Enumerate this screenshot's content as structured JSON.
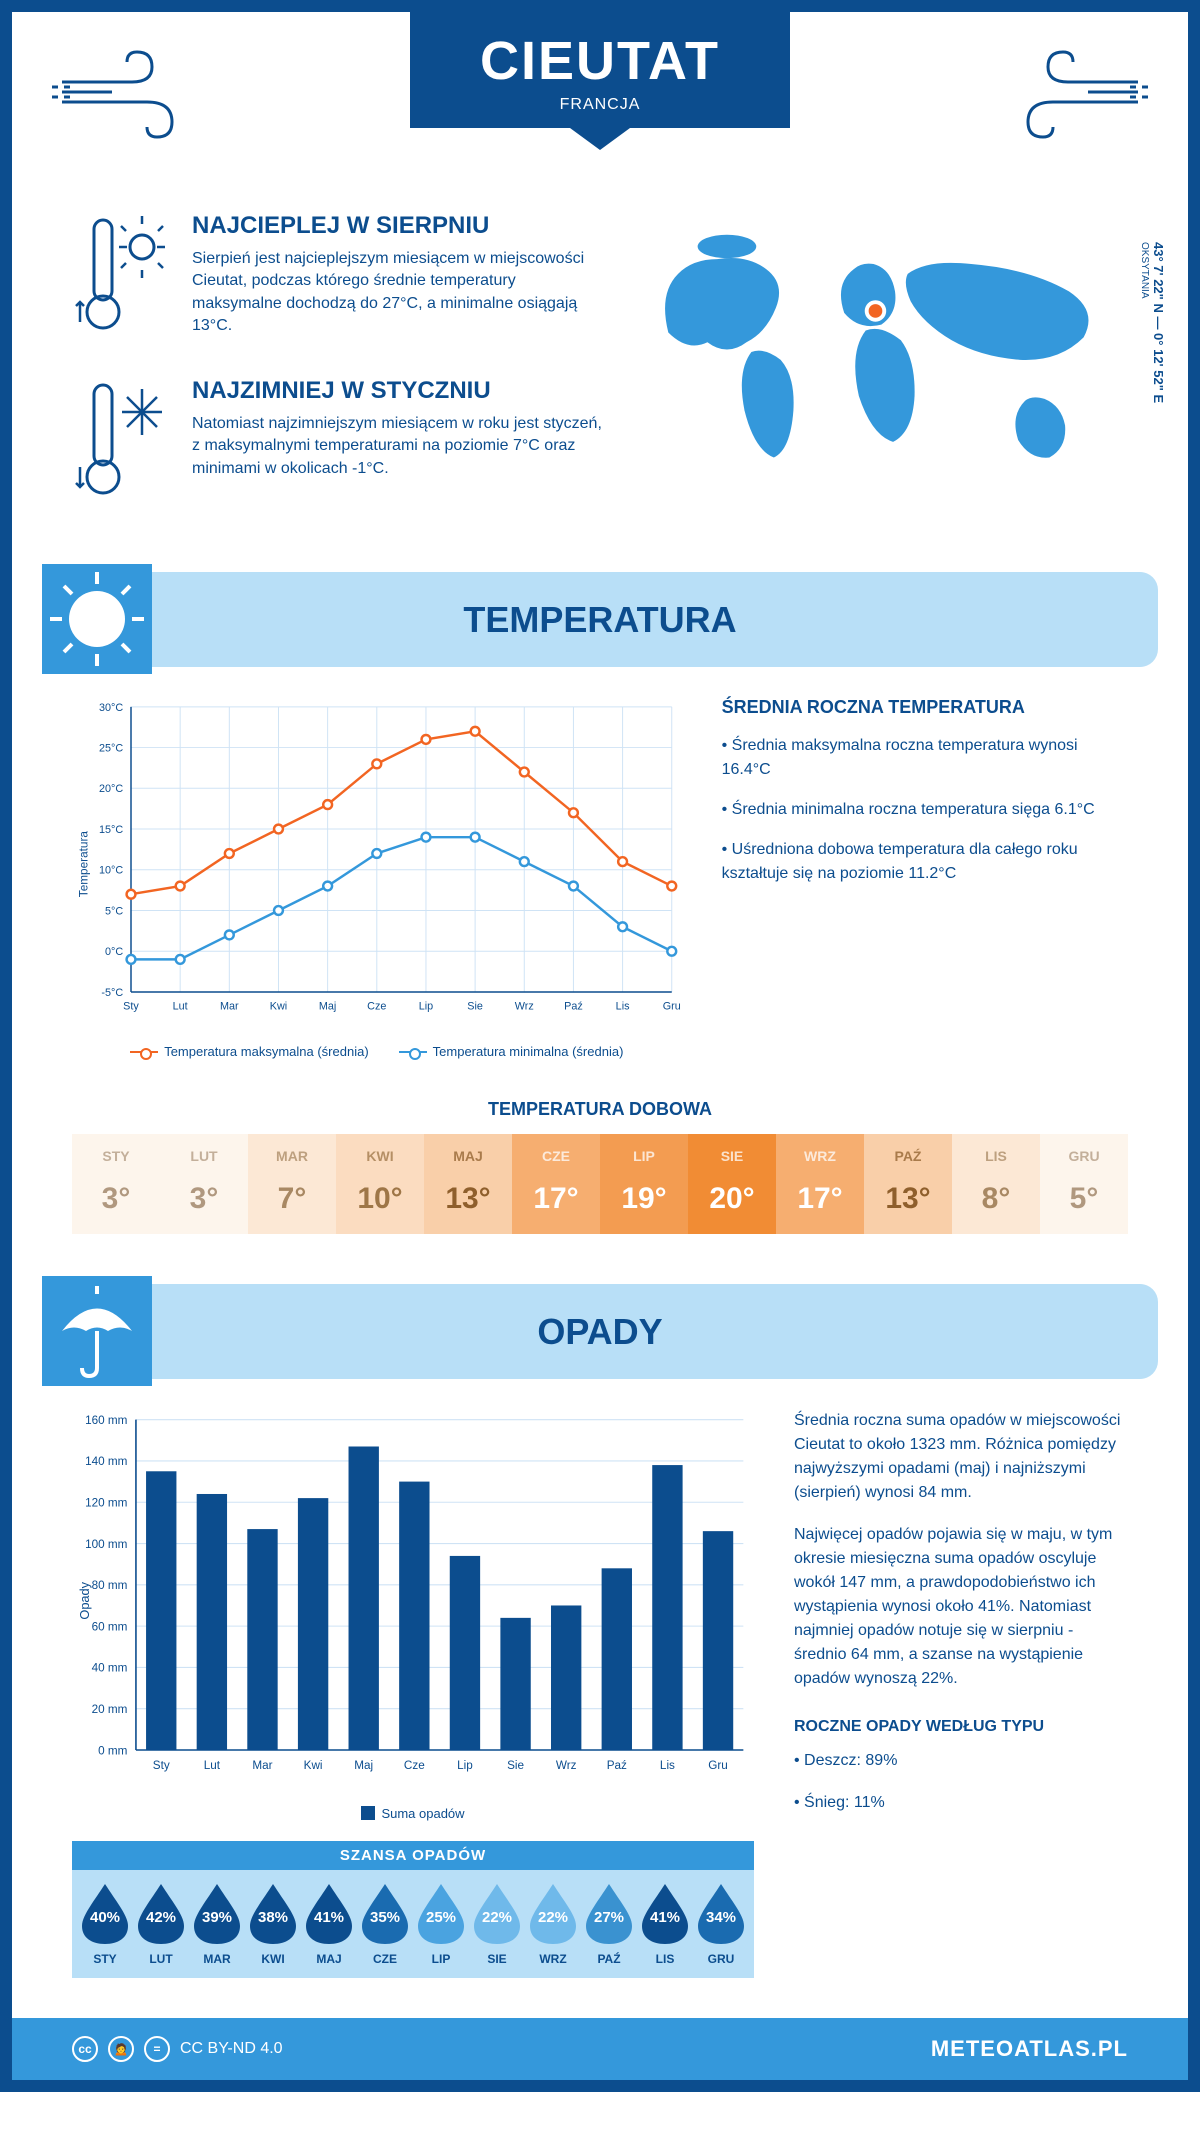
{
  "header": {
    "title": "CIEUTAT",
    "country": "FRANCJA"
  },
  "intro": {
    "hot": {
      "title": "NAJCIEPLEJ W SIERPNIU",
      "text": "Sierpień jest najcieplejszym miesiącem w miejscowości Cieutat, podczas którego średnie temperatury maksymalne dochodzą do 27°C, a minimalne osiągają 13°C."
    },
    "cold": {
      "title": "NAJZIMNIEJ W STYCZNIU",
      "text": "Natomiast najzimniejszym miesiącem w roku jest styczeń, z maksymalnymi temperaturami na poziomie 7°C oraz minimami w okolicach -1°C."
    },
    "coords": "43° 7' 22\" N — 0° 12' 52\" E",
    "region": "OKSYTANIA"
  },
  "months_short": [
    "Sty",
    "Lut",
    "Mar",
    "Kwi",
    "Maj",
    "Cze",
    "Lip",
    "Sie",
    "Wrz",
    "Paź",
    "Lis",
    "Gru"
  ],
  "months_upper": [
    "STY",
    "LUT",
    "MAR",
    "KWI",
    "MAJ",
    "CZE",
    "LIP",
    "SIE",
    "WRZ",
    "PAŹ",
    "LIS",
    "GRU"
  ],
  "temperatura": {
    "banner": "TEMPERATURA",
    "chart": {
      "type": "line",
      "ylabel": "Temperatura",
      "ylim": [
        -5,
        30
      ],
      "ytick_step": 5,
      "ytick_suffix": "°C",
      "grid_color": "#cfe3f5",
      "series": [
        {
          "label": "Temperatura maksymalna (średnia)",
          "color": "#f26522",
          "values": [
            7,
            8,
            12,
            15,
            18,
            23,
            26,
            27,
            22,
            17,
            11,
            8
          ]
        },
        {
          "label": "Temperatura minimalna (średnia)",
          "color": "#3498db",
          "values": [
            -1,
            -1,
            2,
            5,
            8,
            12,
            14,
            14,
            11,
            8,
            3,
            0
          ]
        }
      ]
    },
    "summary": {
      "title": "ŚREDNIA ROCZNA TEMPERATURA",
      "items": [
        "• Średnia maksymalna roczna temperatura wynosi 16.4°C",
        "• Średnia minimalna roczna temperatura sięga 6.1°C",
        "• Uśredniona dobowa temperatura dla całego roku kształtuje się na poziomie 11.2°C"
      ]
    },
    "dobowa": {
      "title": "TEMPERATURA DOBOWA",
      "values": [
        "3°",
        "3°",
        "7°",
        "10°",
        "13°",
        "17°",
        "19°",
        "20°",
        "17°",
        "13°",
        "8°",
        "5°"
      ],
      "colors": [
        "#fdf5ec",
        "#fdf5ec",
        "#fce8d5",
        "#fbdcc0",
        "#f9cfa9",
        "#f6ae70",
        "#f39c51",
        "#f18c34",
        "#f6ae70",
        "#f9cfa9",
        "#fce8d5",
        "#fdf5ec"
      ],
      "text_colors": [
        "#b0987f",
        "#b0987f",
        "#a88863",
        "#9e7647",
        "#8f5f2c",
        "#ffffff",
        "#ffffff",
        "#ffffff",
        "#ffffff",
        "#8f5f2c",
        "#a88863",
        "#b0987f"
      ]
    }
  },
  "opady": {
    "banner": "OPADY",
    "chart": {
      "type": "bar",
      "ylabel": "Opady",
      "ylim": [
        0,
        160
      ],
      "ytick_step": 20,
      "ytick_suffix": " mm",
      "bar_color": "#0c4d8e",
      "legend": "Suma opadów",
      "values": [
        135,
        124,
        107,
        122,
        147,
        130,
        94,
        64,
        70,
        88,
        138,
        106
      ]
    },
    "text1": "Średnia roczna suma opadów w miejscowości Cieutat to około 1323 mm. Różnica pomiędzy najwyższymi opadami (maj) i najniższymi (sierpień) wynosi 84 mm.",
    "text2": "Najwięcej opadów pojawia się w maju, w tym okresie miesięczna suma opadów oscyluje wokół 147 mm, a prawdopodobieństwo ich wystąpienia wynosi około 41%. Natomiast najmniej opadów notuje się w sierpniu - średnio 64 mm, a szanse na wystąpienie opadów wynoszą 22%.",
    "szansa": {
      "title": "SZANSA OPADÓW",
      "values": [
        "40%",
        "42%",
        "39%",
        "38%",
        "41%",
        "35%",
        "25%",
        "22%",
        "22%",
        "27%",
        "41%",
        "34%"
      ],
      "colors": [
        "#0c4d8e",
        "#0c4d8e",
        "#0c4d8e",
        "#0c4d8e",
        "#0c4d8e",
        "#1a6bb0",
        "#4aa3e0",
        "#6fb9ea",
        "#6fb9ea",
        "#3a92d0",
        "#0c4d8e",
        "#1a6bb0"
      ]
    },
    "typu": {
      "title": "ROCZNE OPADY WEDŁUG TYPU",
      "items": [
        "• Deszcz: 89%",
        "• Śnieg: 11%"
      ]
    }
  },
  "footer": {
    "license": "CC BY-ND 4.0",
    "site": "METEOATLAS.PL"
  }
}
